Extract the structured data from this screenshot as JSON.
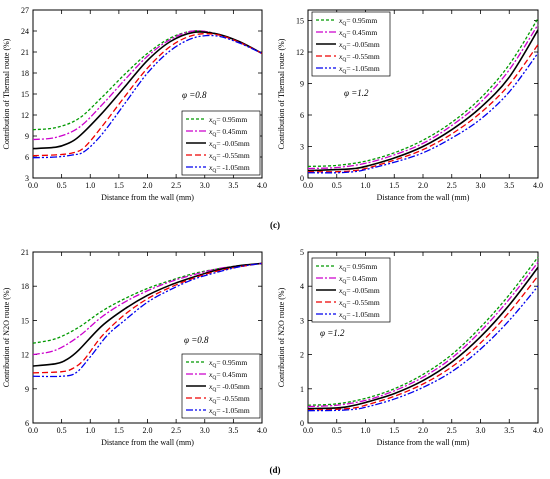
{
  "captions": [
    "(c)",
    "(d)"
  ],
  "legend_var": "x",
  "legend_sub": "Q",
  "chart_data": [
    {
      "type": "line",
      "xlabel": "Distance from the wall (mm)",
      "ylabel": "Contribution of Thermal route (%)",
      "xlim": [
        0,
        4
      ],
      "ylim": [
        3,
        27
      ],
      "xticks": [
        "0.0",
        "0.5",
        "1.0",
        "1.5",
        "2.0",
        "2.5",
        "3.0",
        "3.5",
        "4.0"
      ],
      "yticks": [
        "3",
        "6",
        "9",
        "12",
        "15",
        "18",
        "21",
        "24",
        "27"
      ],
      "phi": "φ =0.8",
      "legend_position": "bottom-right",
      "series": [
        {
          "name": "= 0.95mm",
          "color": "#009900",
          "dash": "3,2",
          "points": [
            [
              0,
              9.9
            ],
            [
              0.4,
              10.2
            ],
            [
              0.8,
              11.5
            ],
            [
              1.2,
              14.5
            ],
            [
              1.6,
              17.8
            ],
            [
              2.0,
              20.8
            ],
            [
              2.4,
              23.0
            ],
            [
              2.8,
              24.0
            ],
            [
              3.2,
              23.6
            ],
            [
              3.6,
              22.4
            ],
            [
              4.0,
              20.8
            ]
          ]
        },
        {
          "name": "= 0.45mm",
          "color": "#cc00cc",
          "dash": "7,2,2,2",
          "points": [
            [
              0,
              8.5
            ],
            [
              0.4,
              8.8
            ],
            [
              0.8,
              10.2
            ],
            [
              1.2,
              13.4
            ],
            [
              1.6,
              17.0
            ],
            [
              2.0,
              20.4
            ],
            [
              2.4,
              22.8
            ],
            [
              2.8,
              24.0
            ],
            [
              3.2,
              23.6
            ],
            [
              3.6,
              22.5
            ],
            [
              4.0,
              20.8
            ]
          ]
        },
        {
          "name": "= -0.05mm",
          "color": "#000000",
          "dash": "",
          "points": [
            [
              0,
              7.2
            ],
            [
              0.4,
              7.4
            ],
            [
              0.6,
              7.9
            ],
            [
              0.8,
              8.9
            ],
            [
              1.2,
              12.2
            ],
            [
              1.6,
              16.0
            ],
            [
              2.0,
              19.8
            ],
            [
              2.4,
              22.5
            ],
            [
              2.8,
              23.8
            ],
            [
              3.2,
              23.6
            ],
            [
              3.6,
              22.5
            ],
            [
              4.0,
              20.8
            ]
          ]
        },
        {
          "name": "= -0.55mm",
          "color": "#ee0000",
          "dash": "6,3",
          "points": [
            [
              0,
              6.2
            ],
            [
              0.4,
              6.3
            ],
            [
              0.7,
              6.6
            ],
            [
              0.9,
              7.4
            ],
            [
              1.2,
              10.3
            ],
            [
              1.6,
              14.6
            ],
            [
              2.0,
              18.7
            ],
            [
              2.4,
              21.8
            ],
            [
              2.8,
              23.4
            ],
            [
              3.2,
              23.5
            ],
            [
              3.6,
              22.4
            ],
            [
              4.0,
              20.8
            ]
          ]
        },
        {
          "name": "= -1.05mm",
          "color": "#0000ee",
          "dash": "7,2,2,2,2,2",
          "points": [
            [
              0,
              5.9
            ],
            [
              0.4,
              6.0
            ],
            [
              0.7,
              6.3
            ],
            [
              0.9,
              6.8
            ],
            [
              1.2,
              9.2
            ],
            [
              1.6,
              13.6
            ],
            [
              2.0,
              18.0
            ],
            [
              2.4,
              21.2
            ],
            [
              2.8,
              23.0
            ],
            [
              3.2,
              23.3
            ],
            [
              3.6,
              22.3
            ],
            [
              4.0,
              20.8
            ]
          ]
        }
      ]
    },
    {
      "type": "line",
      "xlabel": "Distance from the wall (mm)",
      "ylabel": "Contribution of Thermal route (%)",
      "xlim": [
        0,
        4
      ],
      "ylim": [
        0,
        16
      ],
      "xticks": [
        "0.0",
        "0.5",
        "1.0",
        "1.5",
        "2.0",
        "2.5",
        "3.0",
        "3.5",
        "4.0"
      ],
      "yticks": [
        "0",
        "3",
        "6",
        "9",
        "12",
        "15"
      ],
      "phi": "φ =1.2",
      "legend_position": "top-left",
      "series": [
        {
          "name": "= 0.95mm",
          "color": "#009900",
          "dash": "3,2",
          "points": [
            [
              0,
              1.1
            ],
            [
              0.5,
              1.2
            ],
            [
              1.0,
              1.6
            ],
            [
              1.5,
              2.4
            ],
            [
              2.0,
              3.6
            ],
            [
              2.5,
              5.3
            ],
            [
              3.0,
              7.6
            ],
            [
              3.5,
              10.8
            ],
            [
              4.0,
              15.2
            ]
          ]
        },
        {
          "name": "= 0.45mm",
          "color": "#cc00cc",
          "dash": "7,2,2,2",
          "points": [
            [
              0,
              0.9
            ],
            [
              0.5,
              1.0
            ],
            [
              1.0,
              1.4
            ],
            [
              1.5,
              2.2
            ],
            [
              2.0,
              3.3
            ],
            [
              2.5,
              5.0
            ],
            [
              3.0,
              7.2
            ],
            [
              3.5,
              10.3
            ],
            [
              4.0,
              14.6
            ]
          ]
        },
        {
          "name": "= -0.05mm",
          "color": "#000000",
          "dash": "",
          "points": [
            [
              0,
              0.7
            ],
            [
              0.5,
              0.8
            ],
            [
              0.8,
              0.9
            ],
            [
              1.0,
              1.1
            ],
            [
              1.5,
              1.9
            ],
            [
              2.0,
              3.0
            ],
            [
              2.5,
              4.6
            ],
            [
              3.0,
              6.7
            ],
            [
              3.5,
              9.6
            ],
            [
              4.0,
              14.1
            ]
          ]
        },
        {
          "name": "= -0.55mm",
          "color": "#ee0000",
          "dash": "6,3",
          "points": [
            [
              0,
              0.6
            ],
            [
              0.5,
              0.6
            ],
            [
              0.8,
              0.7
            ],
            [
              1.0,
              0.9
            ],
            [
              1.5,
              1.7
            ],
            [
              2.0,
              2.7
            ],
            [
              2.5,
              4.2
            ],
            [
              3.0,
              6.2
            ],
            [
              3.5,
              8.9
            ],
            [
              4.0,
              12.7
            ]
          ]
        },
        {
          "name": "= -1.05mm",
          "color": "#0000ee",
          "dash": "7,2,2,2,2,2",
          "points": [
            [
              0,
              0.5
            ],
            [
              0.5,
              0.5
            ],
            [
              0.8,
              0.6
            ],
            [
              1.0,
              0.8
            ],
            [
              1.5,
              1.5
            ],
            [
              2.0,
              2.4
            ],
            [
              2.5,
              3.8
            ],
            [
              3.0,
              5.6
            ],
            [
              3.5,
              8.2
            ],
            [
              4.0,
              11.9
            ]
          ]
        }
      ]
    },
    {
      "type": "line",
      "xlabel": "Distance from the wall (mm)",
      "ylabel": "Contribution of N2O route (%)",
      "xlim": [
        0,
        4
      ],
      "ylim": [
        6,
        21
      ],
      "xticks": [
        "0.0",
        "0.5",
        "1.0",
        "1.5",
        "2.0",
        "2.5",
        "3.0",
        "3.5",
        "4.0"
      ],
      "yticks": [
        "6",
        "9",
        "12",
        "15",
        "18",
        "21"
      ],
      "phi": "φ =0.8",
      "legend_position": "bottom-right",
      "series": [
        {
          "name": "= 0.95mm",
          "color": "#009900",
          "dash": "3,2",
          "points": [
            [
              0,
              13.0
            ],
            [
              0.4,
              13.4
            ],
            [
              0.8,
              14.4
            ],
            [
              1.2,
              15.8
            ],
            [
              1.6,
              16.9
            ],
            [
              2.0,
              17.8
            ],
            [
              2.4,
              18.5
            ],
            [
              2.8,
              19.1
            ],
            [
              3.2,
              19.5
            ],
            [
              3.6,
              19.8
            ],
            [
              4.0,
              20.0
            ]
          ]
        },
        {
          "name": "= 0.45mm",
          "color": "#cc00cc",
          "dash": "7,2,2,2",
          "points": [
            [
              0,
              12.0
            ],
            [
              0.4,
              12.4
            ],
            [
              0.8,
              13.6
            ],
            [
              1.2,
              15.3
            ],
            [
              1.6,
              16.6
            ],
            [
              2.0,
              17.6
            ],
            [
              2.4,
              18.4
            ],
            [
              2.8,
              19.0
            ],
            [
              3.2,
              19.5
            ],
            [
              3.6,
              19.8
            ],
            [
              4.0,
              20.0
            ]
          ]
        },
        {
          "name": "= -0.05mm",
          "color": "#000000",
          "dash": "",
          "points": [
            [
              0,
              11.0
            ],
            [
              0.4,
              11.2
            ],
            [
              0.6,
              11.6
            ],
            [
              0.8,
              12.4
            ],
            [
              1.2,
              14.5
            ],
            [
              1.6,
              16.0
            ],
            [
              2.0,
              17.2
            ],
            [
              2.4,
              18.1
            ],
            [
              2.8,
              18.8
            ],
            [
              3.2,
              19.4
            ],
            [
              3.6,
              19.8
            ],
            [
              4.0,
              20.0
            ]
          ]
        },
        {
          "name": "= -0.55mm",
          "color": "#ee0000",
          "dash": "6,3",
          "points": [
            [
              0,
              10.4
            ],
            [
              0.5,
              10.5
            ],
            [
              0.7,
              10.8
            ],
            [
              0.9,
              11.6
            ],
            [
              1.2,
              13.6
            ],
            [
              1.6,
              15.5
            ],
            [
              2.0,
              16.9
            ],
            [
              2.4,
              17.9
            ],
            [
              2.8,
              18.7
            ],
            [
              3.2,
              19.3
            ],
            [
              3.6,
              19.7
            ],
            [
              4.0,
              20.0
            ]
          ]
        },
        {
          "name": "= -1.05mm",
          "color": "#0000ee",
          "dash": "7,2,2,2,2,2",
          "points": [
            [
              0,
              10.1
            ],
            [
              0.5,
              10.1
            ],
            [
              0.75,
              10.4
            ],
            [
              1.0,
              11.8
            ],
            [
              1.3,
              13.7
            ],
            [
              1.6,
              15.0
            ],
            [
              2.0,
              16.6
            ],
            [
              2.4,
              17.7
            ],
            [
              2.8,
              18.6
            ],
            [
              3.2,
              19.2
            ],
            [
              3.6,
              19.7
            ],
            [
              4.0,
              20.0
            ]
          ]
        }
      ]
    },
    {
      "type": "line",
      "xlabel": "Distance from the wall (mm)",
      "ylabel": "Contribution of N2O route (%)",
      "xlim": [
        0,
        4
      ],
      "ylim": [
        0,
        5
      ],
      "xticks": [
        "0.0",
        "0.5",
        "1.0",
        "1.5",
        "2.0",
        "2.5",
        "3.0",
        "3.5",
        "4.0"
      ],
      "yticks": [
        "0",
        "1",
        "2",
        "3",
        "4",
        "5"
      ],
      "phi": "φ =1.2",
      "legend_position": "top-left",
      "series": [
        {
          "name": "= 0.95mm",
          "color": "#009900",
          "dash": "3,2",
          "points": [
            [
              0,
              0.52
            ],
            [
              0.5,
              0.56
            ],
            [
              1.0,
              0.72
            ],
            [
              1.5,
              1.0
            ],
            [
              2.0,
              1.42
            ],
            [
              2.5,
              2.0
            ],
            [
              3.0,
              2.8
            ],
            [
              3.5,
              3.75
            ],
            [
              4.0,
              4.85
            ]
          ]
        },
        {
          "name": "= 0.45mm",
          "color": "#cc00cc",
          "dash": "7,2,2,2",
          "points": [
            [
              0,
              0.48
            ],
            [
              0.5,
              0.52
            ],
            [
              1.0,
              0.66
            ],
            [
              1.5,
              0.94
            ],
            [
              2.0,
              1.34
            ],
            [
              2.5,
              1.9
            ],
            [
              3.0,
              2.68
            ],
            [
              3.5,
              3.62
            ],
            [
              4.0,
              4.7
            ]
          ]
        },
        {
          "name": "= -0.05mm",
          "color": "#000000",
          "dash": "",
          "points": [
            [
              0,
              0.42
            ],
            [
              0.5,
              0.44
            ],
            [
              0.7,
              0.48
            ],
            [
              1.0,
              0.6
            ],
            [
              1.5,
              0.86
            ],
            [
              2.0,
              1.24
            ],
            [
              2.5,
              1.78
            ],
            [
              3.0,
              2.52
            ],
            [
              3.5,
              3.45
            ],
            [
              4.0,
              4.55
            ]
          ]
        },
        {
          "name": "= -0.55mm",
          "color": "#ee0000",
          "dash": "6,3",
          "points": [
            [
              0,
              0.38
            ],
            [
              0.5,
              0.4
            ],
            [
              0.8,
              0.44
            ],
            [
              1.0,
              0.52
            ],
            [
              1.5,
              0.78
            ],
            [
              2.0,
              1.14
            ],
            [
              2.5,
              1.64
            ],
            [
              3.0,
              2.34
            ],
            [
              3.5,
              3.24
            ],
            [
              4.0,
              4.3
            ]
          ]
        },
        {
          "name": "= -1.05mm",
          "color": "#0000ee",
          "dash": "7,2,2,2,2,2",
          "points": [
            [
              0,
              0.36
            ],
            [
              0.5,
              0.37
            ],
            [
              0.8,
              0.4
            ],
            [
              1.0,
              0.46
            ],
            [
              1.5,
              0.7
            ],
            [
              2.0,
              1.04
            ],
            [
              2.5,
              1.5
            ],
            [
              3.0,
              2.16
            ],
            [
              3.5,
              3.0
            ],
            [
              4.0,
              4.0
            ]
          ]
        }
      ]
    }
  ]
}
